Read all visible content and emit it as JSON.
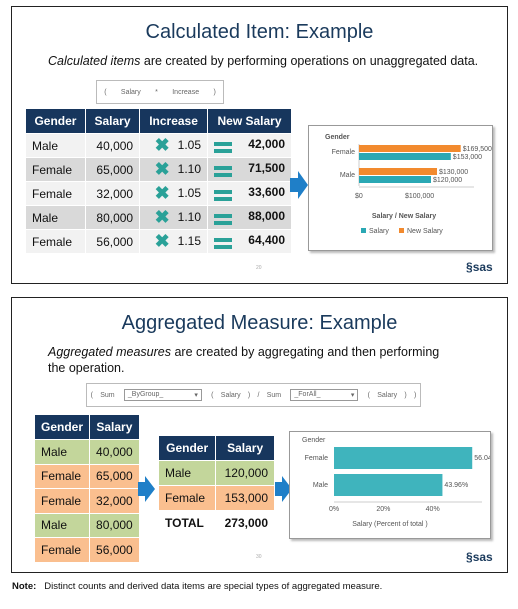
{
  "slide1": {
    "title": "Calculated Item: Example",
    "subtitle_em": "Calculated items",
    "subtitle_rest": " are created by performing operations on unaggregated data.",
    "formula": {
      "open": "(",
      "a": "Salary",
      "op": "*",
      "b": "Increase",
      "close": ")"
    },
    "table": {
      "headers": [
        "Gender",
        "Salary",
        "Increase",
        "New Salary"
      ],
      "rows": [
        [
          "Male",
          "40,000",
          "1.05",
          "42,000"
        ],
        [
          "Female",
          "65,000",
          "1.10",
          "71,500"
        ],
        [
          "Female",
          "32,000",
          "1.05",
          "33,600"
        ],
        [
          "Male",
          "80,000",
          "1.10",
          "88,000"
        ],
        [
          "Female",
          "56,000",
          "1.15",
          "64,400"
        ]
      ]
    },
    "chart": {
      "axis_title": "Gender",
      "categories": [
        "Female",
        "Male"
      ],
      "xticks": [
        "$0",
        "$100,000"
      ],
      "xlabel": "Salary / New Salary",
      "legend": [
        "Salary",
        "New Salary"
      ],
      "labels": {
        "female_new": "$169,500",
        "female_sal": "$153,000",
        "male_new": "$130,000",
        "male_sal": "$120,000"
      }
    },
    "page": "20",
    "logo": "sas",
    "colors": {
      "salary": "#2aa8b4",
      "new_salary": "#f28a2e",
      "header": "#17365d"
    }
  },
  "slide2": {
    "title": "Aggregated Measure: Example",
    "subtitle_em": "Aggregated measures",
    "subtitle_rest": " are created by aggregating and then performing the operation.",
    "formula": {
      "p1": "(",
      "sum1": "Sum",
      "dd1": "_ByGroup_",
      "p2": "(",
      "f1": "Salary",
      "p3": ")",
      "div": "/",
      "sum2": "Sum",
      "dd2": "_ForAll_",
      "p4": "(",
      "f2": "Salary",
      "p5": ")",
      "p6": ")"
    },
    "table": {
      "headers": [
        "Gender",
        "Salary"
      ],
      "rows": [
        [
          "Male",
          "40,000"
        ],
        [
          "Female",
          "65,000"
        ],
        [
          "Female",
          "32,000"
        ],
        [
          "Male",
          "80,000"
        ],
        [
          "Female",
          "56,000"
        ]
      ]
    },
    "agg_table": {
      "headers": [
        "Gender",
        "Salary"
      ],
      "rows": [
        [
          "Male",
          "120,000"
        ],
        [
          "Female",
          "153,000"
        ],
        [
          "TOTAL",
          "273,000"
        ]
      ]
    },
    "chart": {
      "axis_title": "Gender",
      "categories": [
        "Female",
        "Male"
      ],
      "xticks": [
        "0%",
        "20%",
        "40%"
      ],
      "xlabel": "Salary (Percent of total )",
      "labels": [
        "56.04%",
        "43.96%"
      ]
    },
    "page": "30",
    "logo": "sas"
  },
  "note": {
    "label": "Note:",
    "text": "Distinct counts and derived data items are special types of aggregated measure."
  },
  "chart_data": [
    {
      "type": "bar",
      "categories": [
        "Female",
        "Male"
      ],
      "series": [
        {
          "name": "Salary",
          "values": [
            153000,
            120000
          ]
        },
        {
          "name": "New Salary",
          "values": [
            169500,
            130000
          ]
        }
      ],
      "xlabel": "Salary / New Salary",
      "ylabel": "Gender"
    },
    {
      "type": "bar",
      "categories": [
        "Female",
        "Male"
      ],
      "values": [
        56.04,
        43.96
      ],
      "xlabel": "Salary (Percent of total )",
      "ylabel": "Gender"
    }
  ]
}
